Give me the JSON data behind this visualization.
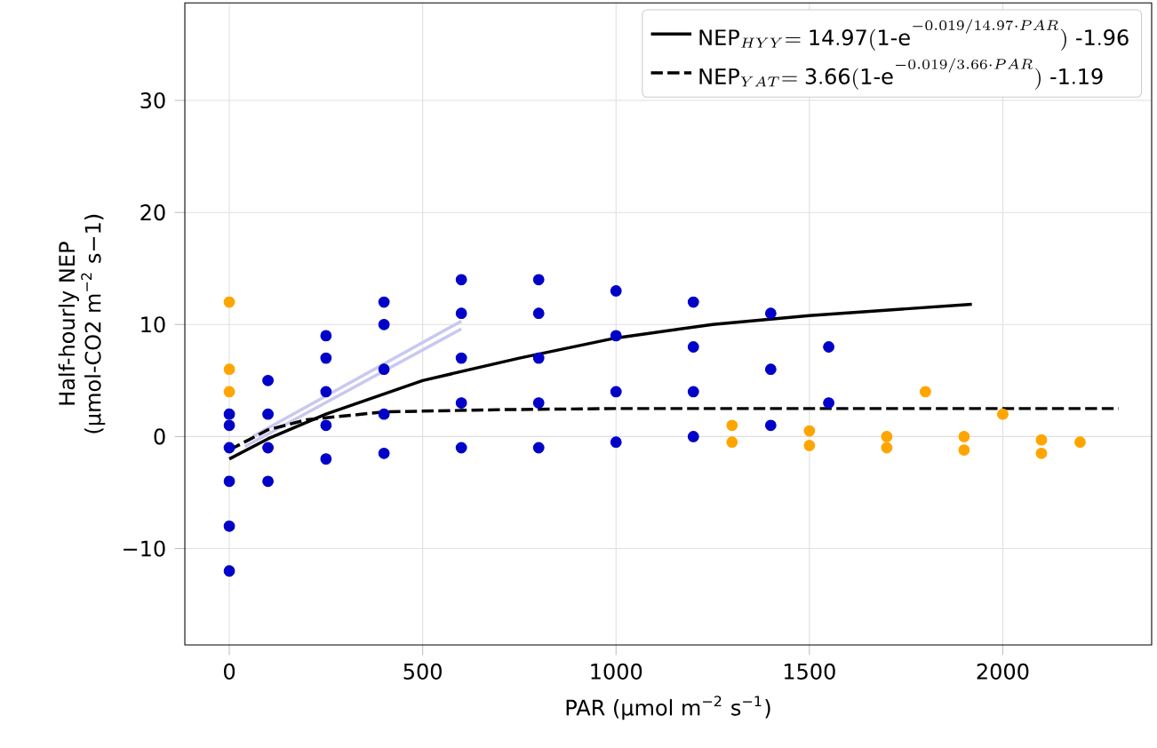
{
  "chart_data": {
    "type": "scatter",
    "xlabel": "PAR (µmol m$^{−2}$ s$^{−1}$)",
    "ylabel": "Half-hourly NEP\n(µmol-CO2 m$^{−2}$ s−1)",
    "xlim": [
      -115,
      2385
    ],
    "ylim": [
      -18.6,
      38.7
    ],
    "xticks": [
      0,
      500,
      1000,
      1500,
      2000
    ],
    "yticks": [
      {
        "value": -10,
        "label": "−10"
      },
      0,
      10,
      20,
      30
    ],
    "grid": true,
    "legend": "top right",
    "marker": "circle",
    "series": [
      {
        "color": "#0000c8",
        "x": [
          0,
          0,
          0,
          0,
          0,
          0,
          100,
          100,
          100,
          100,
          250,
          250,
          250,
          250,
          250,
          400,
          400,
          400,
          400,
          400,
          600,
          600,
          600,
          600,
          600,
          800,
          800,
          800,
          800,
          800,
          1000,
          1000,
          1000,
          1000,
          1200,
          1200,
          1200,
          1200,
          1400,
          1400,
          1400,
          1550,
          1550
        ],
        "values": [
          -12,
          -8,
          -4,
          -1,
          1,
          2,
          -4,
          -1,
          2,
          5,
          -2,
          1,
          4,
          7,
          9,
          -1.5,
          2,
          6,
          10,
          12,
          -1,
          3,
          7,
          11,
          14,
          -1,
          3,
          7,
          11,
          14,
          -0.5,
          4,
          9,
          13,
          0,
          4,
          8,
          12,
          1,
          6,
          11,
          3,
          8
        ]
      },
      {
        "color": "#ffa500",
        "x": [
          0,
          0,
          0,
          1300,
          1500,
          1700,
          1900,
          2100,
          2200,
          1300,
          1500,
          1700,
          1900,
          2100,
          1800,
          2000
        ],
        "values": [
          12,
          6,
          4,
          -0.5,
          -0.8,
          -1,
          -1.2,
          -1.5,
          -0.5,
          1,
          0.5,
          0,
          0,
          -0.3,
          4,
          2
        ]
      },
      {
        "type": "line",
        "color": "#c8c8f0",
        "marker": "none",
        "x": [
          60,
          600
        ],
        "values": [
          0,
          10.3
        ]
      },
      {
        "type": "line",
        "color": "#c8c8f0",
        "marker": "none",
        "x": [
          40,
          600
        ],
        "values": [
          -0.9,
          9.6
        ]
      },
      {
        "type": "line",
        "color": "#000000",
        "marker": "none",
        "line_style": "solid",
        "name": "\\mathrm{NEP}_{HYY}\\mathrm{=14.97(1\\text{-}e}^{-0.019/14.97\\cdot PAR}\\mathrm{)\\ \\text{-}1.96}",
        "x": [
          0,
          100,
          250,
          500,
          750,
          1000,
          1250,
          1500,
          1750,
          1920
        ],
        "values": [
          -2.0,
          -0.2,
          2,
          5,
          7,
          8.8,
          10,
          10.8,
          11.4,
          11.8
        ]
      },
      {
        "type": "line",
        "color": "#000000",
        "marker": "none",
        "line_style": "dashed",
        "name": "\\mathrm{NEP}_{YAT}\\mathrm{=3.66(1\\text{-}e}^{-0.019/3.66\\cdot PAR}\\mathrm{)\\ \\text{-}1.19}",
        "x": [
          0,
          100,
          200,
          400,
          700,
          1000,
          2300
        ],
        "values": [
          -1.2,
          0.6,
          1.5,
          2.2,
          2.4,
          2.5,
          2.5
        ]
      }
    ]
  }
}
